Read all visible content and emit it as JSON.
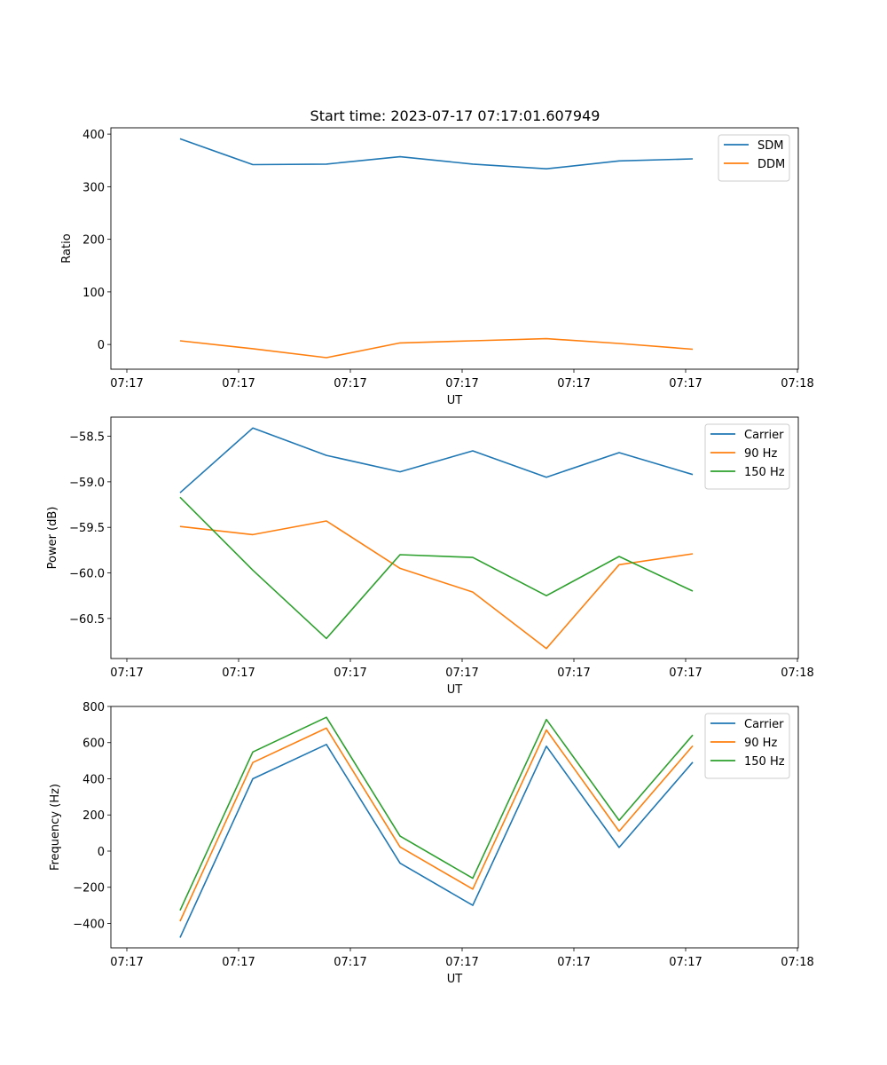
{
  "figure": {
    "title": "Start time: 2023-07-17 07:17:01.607949"
  },
  "colors": {
    "blue": "#1f77b4",
    "orange": "#ff7f0e",
    "green": "#2ca02c"
  },
  "chart_data": [
    {
      "type": "line",
      "xlabel": "UT",
      "ylabel": "Ratio",
      "x_tick_labels": [
        "07:17",
        "07:17",
        "07:17",
        "07:17",
        "07:17",
        "07:17",
        "07:18"
      ],
      "y_ticks": [
        0,
        100,
        200,
        300,
        400
      ],
      "y_tick_labels": [
        "0",
        "100",
        "200",
        "300",
        "400"
      ],
      "ylim": [
        -47,
        412
      ],
      "legend_position": "upper right",
      "series": [
        {
          "name": "SDM",
          "color": "#1f77b4",
          "values": [
            391,
            342,
            343,
            357,
            343,
            334,
            349,
            353
          ]
        },
        {
          "name": "DDM",
          "color": "#ff7f0e",
          "values": [
            7,
            -8,
            -25,
            3,
            7,
            11,
            2,
            -9
          ]
        }
      ]
    },
    {
      "type": "line",
      "xlabel": "UT",
      "ylabel": "Power (dB)",
      "x_tick_labels": [
        "07:17",
        "07:17",
        "07:17",
        "07:17",
        "07:17",
        "07:17",
        "07:18"
      ],
      "y_ticks": [
        -58.5,
        -59.0,
        -59.5,
        -60.0,
        -60.5
      ],
      "y_tick_labels": [
        "−58.5",
        "−59.0",
        "−59.5",
        "−60.0",
        "−60.5"
      ],
      "ylim": [
        -60.94,
        -58.29
      ],
      "legend_position": "upper right",
      "series": [
        {
          "name": "Carrier",
          "color": "#1f77b4",
          "values": [
            -59.12,
            -58.41,
            -58.71,
            -58.89,
            -58.66,
            -58.95,
            -58.68,
            -58.92
          ]
        },
        {
          "name": "90 Hz",
          "color": "#ff7f0e",
          "values": [
            -59.49,
            -59.58,
            -59.43,
            -59.95,
            -60.21,
            -60.83,
            -59.91,
            -59.79
          ]
        },
        {
          "name": "150 Hz",
          "color": "#2ca02c",
          "values": [
            -59.17,
            -59.97,
            -60.72,
            -59.8,
            -59.83,
            -60.25,
            -59.82,
            -60.2
          ]
        }
      ]
    },
    {
      "type": "line",
      "xlabel": "UT",
      "ylabel": "Frequency (Hz)",
      "x_tick_labels": [
        "07:17",
        "07:17",
        "07:17",
        "07:17",
        "07:17",
        "07:17",
        "07:18"
      ],
      "y_ticks": [
        800,
        600,
        400,
        200,
        0,
        -200,
        -400
      ],
      "y_tick_labels": [
        "800",
        "600",
        "400",
        "200",
        "0",
        "−200",
        "−400"
      ],
      "ylim": [
        -535,
        800
      ],
      "legend_position": "upper right",
      "series": [
        {
          "name": "Carrier",
          "color": "#1f77b4",
          "values": [
            -478,
            400,
            590,
            -67,
            -300,
            580,
            20,
            492
          ]
        },
        {
          "name": "90 Hz",
          "color": "#ff7f0e",
          "values": [
            -388,
            490,
            680,
            23,
            -210,
            670,
            110,
            582
          ]
        },
        {
          "name": "150 Hz",
          "color": "#2ca02c",
          "values": [
            -328,
            548,
            740,
            83,
            -150,
            728,
            170,
            642
          ]
        }
      ]
    }
  ]
}
